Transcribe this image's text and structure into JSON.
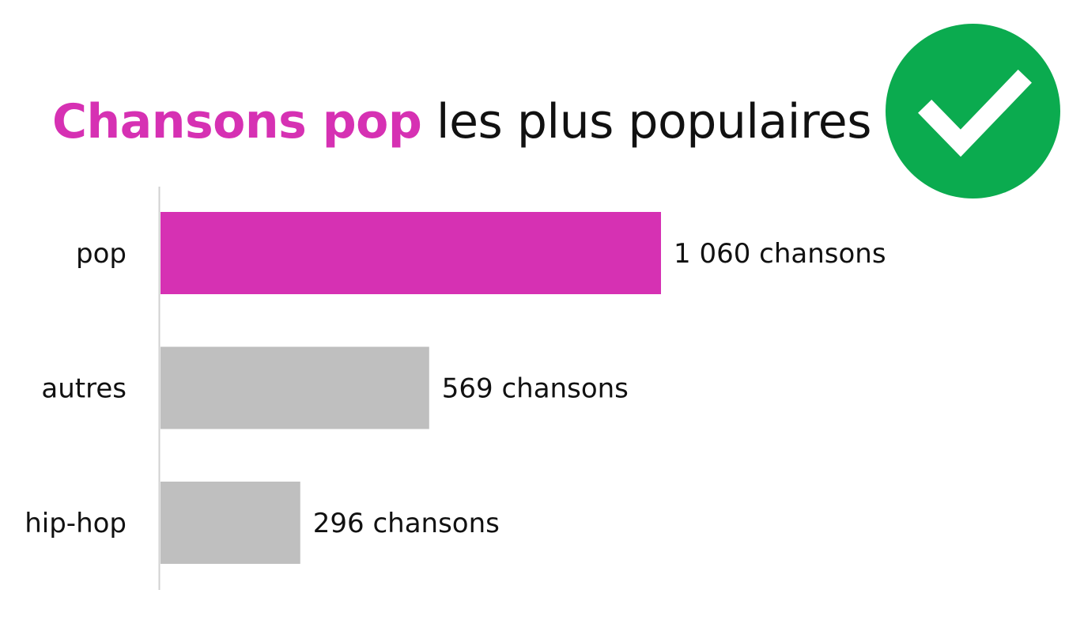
{
  "title": {
    "highlight": "Chansons pop",
    "rest": " les plus populaires",
    "highlight_color": "#d631b3"
  },
  "badge": {
    "icon": "check-icon",
    "color": "#0bab4f"
  },
  "chart_data": {
    "type": "bar",
    "orientation": "horizontal",
    "categories": [
      "pop",
      "autres",
      "hip-hop"
    ],
    "values": [
      1060,
      569,
      296
    ],
    "value_labels": [
      "1 060 chansons",
      "569 chansons",
      "296 chansons"
    ],
    "colors": [
      "#d631b3",
      "#bfbfbf",
      "#bfbfbf"
    ],
    "title": "Chansons pop les plus populaires",
    "xlim": [
      0,
      1060
    ]
  }
}
